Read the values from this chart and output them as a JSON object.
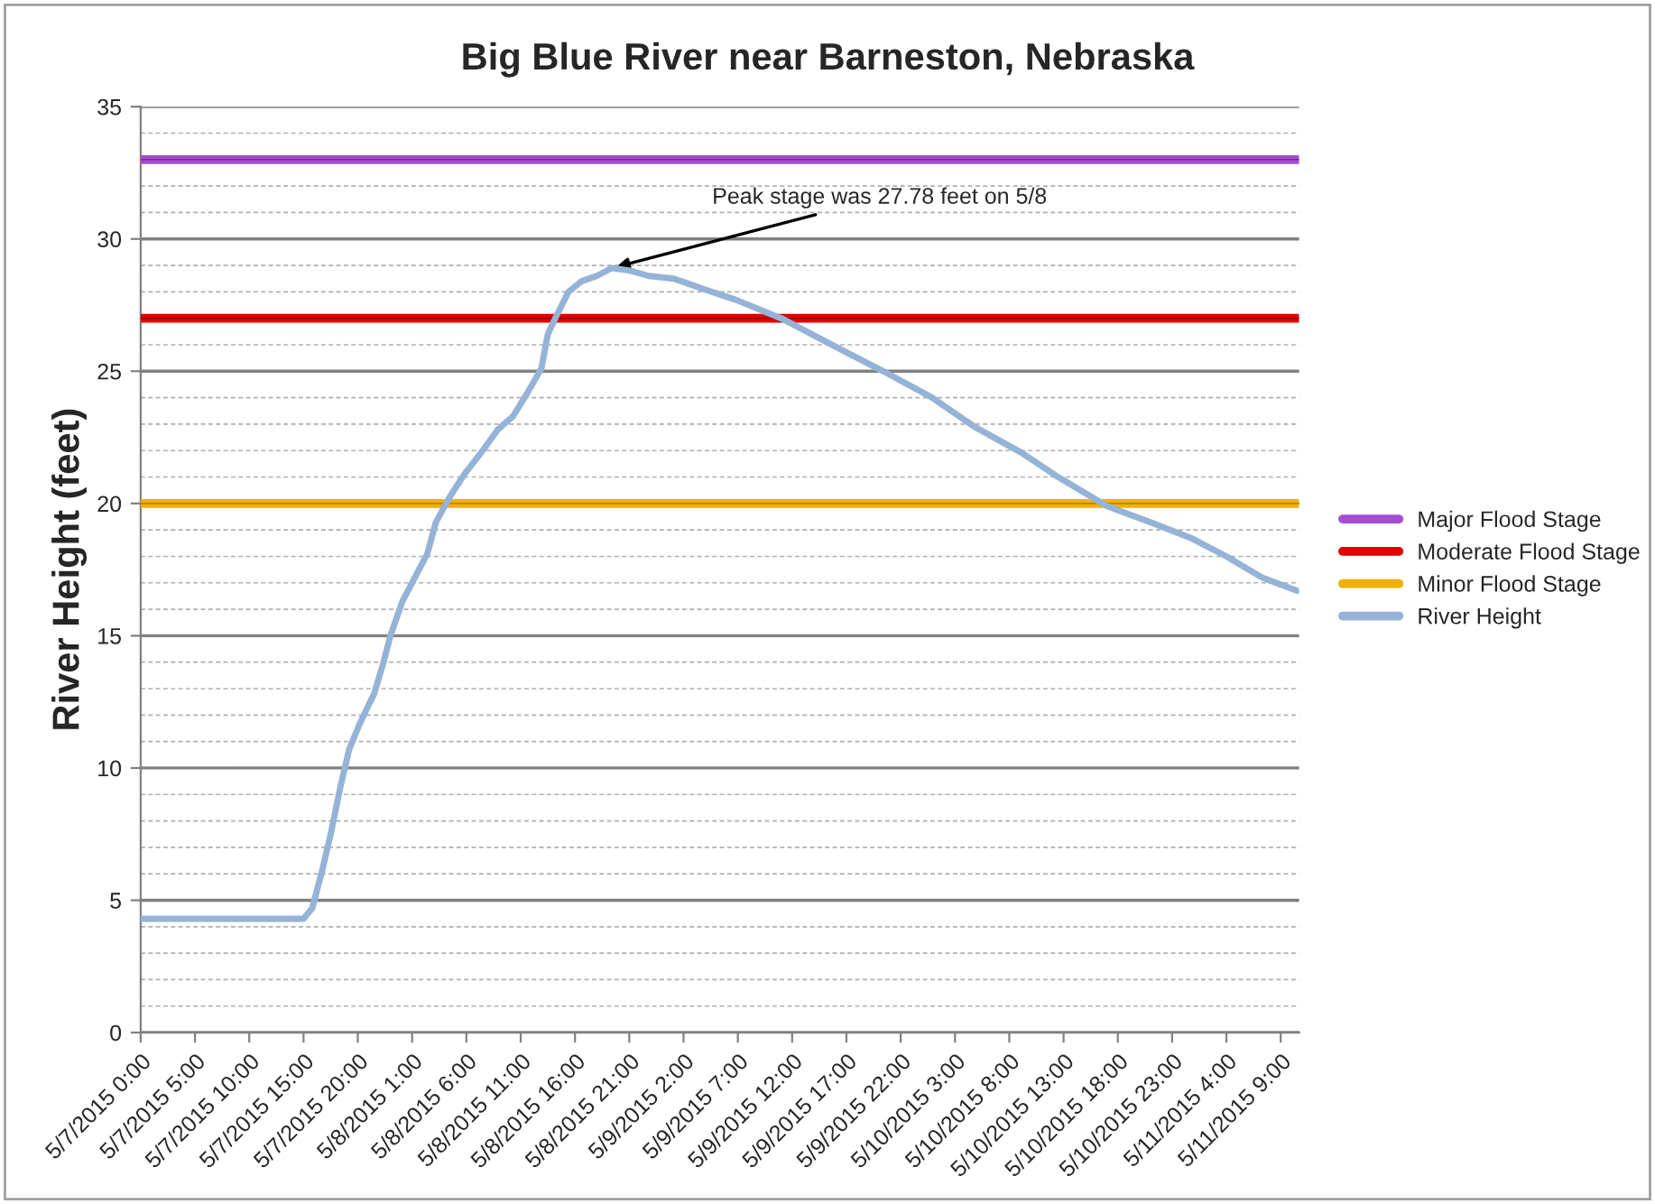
{
  "chart_data": {
    "type": "line",
    "title": "Big Blue River near Barneston, Nebraska",
    "ylabel": "River Height (feet)",
    "x": [
      "2015-05-07T00:00",
      "2015-05-07T12:12",
      "2015-05-07T15:00",
      "2015-05-07T15:48",
      "2015-05-07T16:42",
      "2015-05-07T17:30",
      "2015-05-07T18:24",
      "2015-05-07T19:12",
      "2015-05-07T20:06",
      "2015-05-07T20:54",
      "2015-05-07T21:30",
      "2015-05-07T22:18",
      "2015-05-07T23:00",
      "2015-05-08T00:06",
      "2015-05-08T01:30",
      "2015-05-08T02:24",
      "2015-05-08T03:12",
      "2015-05-08T04:24",
      "2015-05-08T05:48",
      "2015-05-08T07:30",
      "2015-05-08T08:54",
      "2015-05-08T10:18",
      "2015-05-08T11:30",
      "2015-05-08T12:54",
      "2015-05-08T13:30",
      "2015-05-08T14:18",
      "2015-05-08T15:24",
      "2015-05-08T16:36",
      "2015-05-08T18:00",
      "2015-05-08T19:24",
      "2015-05-08T21:06",
      "2015-05-08T22:48",
      "2015-05-09T01:06",
      "2015-05-09T03:54",
      "2015-05-09T06:48",
      "2015-05-09T11:00",
      "2015-05-09T16:36",
      "2015-05-09T20:24",
      "2015-05-10T00:54",
      "2015-05-10T04:48",
      "2015-05-10T09:12",
      "2015-05-10T12:30",
      "2015-05-10T17:00",
      "2015-05-10T20:18",
      "2015-05-11T00:42",
      "2015-05-11T04:00",
      "2015-05-11T07:18",
      "2015-05-11T10:30"
    ],
    "series": [
      {
        "name": "River Height",
        "color": "#95b3d7",
        "values": [
          4.3,
          4.3,
          4.3,
          4.7,
          6.1,
          7.5,
          9.3,
          10.7,
          11.6,
          12.3,
          12.8,
          13.9,
          15.0,
          16.3,
          17.4,
          18.1,
          19.3,
          20.2,
          21.1,
          22.0,
          22.8,
          23.3,
          24.1,
          25.1,
          26.4,
          27.1,
          28.0,
          28.4,
          28.6,
          28.9,
          28.8,
          28.6,
          28.5,
          28.1,
          27.7,
          27.0,
          25.8,
          25.0,
          24.0,
          22.9,
          21.9,
          21.0,
          19.9,
          19.4,
          18.7,
          18.0,
          17.2,
          16.7
        ]
      }
    ],
    "ref_lines": [
      {
        "axis": "y",
        "value": 33,
        "label": "Major Flood Stage",
        "color": "#a64dd2"
      },
      {
        "axis": "y",
        "value": 27,
        "label": "Moderate Flood Stage",
        "color": "#e00000"
      },
      {
        "axis": "y",
        "value": 20,
        "label": "Minor Flood Stage",
        "color": "#f0b000"
      }
    ],
    "annotations": [
      {
        "text": "Peak stage was 27.78 feet on 5/8",
        "x": "2015-05-08T19:24",
        "y": 28.9
      }
    ],
    "xlim": [
      "2015-05-07T00:00",
      "2015-05-11T10:42"
    ],
    "xticks": [
      {
        "value": "2015-05-07T00:00",
        "label": "5/7/2015 0:00"
      },
      {
        "value": "2015-05-07T05:00",
        "label": "5/7/2015 5:00"
      },
      {
        "value": "2015-05-07T10:00",
        "label": "5/7/2015 10:00"
      },
      {
        "value": "2015-05-07T15:00",
        "label": "5/7/2015 15:00"
      },
      {
        "value": "2015-05-07T20:00",
        "label": "5/7/2015 20:00"
      },
      {
        "value": "2015-05-08T01:00",
        "label": "5/8/2015 1:00"
      },
      {
        "value": "2015-05-08T06:00",
        "label": "5/8/2015 6:00"
      },
      {
        "value": "2015-05-08T11:00",
        "label": "5/8/2015 11:00"
      },
      {
        "value": "2015-05-08T16:00",
        "label": "5/8/2015 16:00"
      },
      {
        "value": "2015-05-08T21:00",
        "label": "5/8/2015 21:00"
      },
      {
        "value": "2015-05-09T02:00",
        "label": "5/9/2015 2:00"
      },
      {
        "value": "2015-05-09T07:00",
        "label": "5/9/2015 7:00"
      },
      {
        "value": "2015-05-09T12:00",
        "label": "5/9/2015 12:00"
      },
      {
        "value": "2015-05-09T17:00",
        "label": "5/9/2015 17:00"
      },
      {
        "value": "2015-05-09T22:00",
        "label": "5/9/2015 22:00"
      },
      {
        "value": "2015-05-10T03:00",
        "label": "5/10/2015 3:00"
      },
      {
        "value": "2015-05-10T08:00",
        "label": "5/10/2015 8:00"
      },
      {
        "value": "2015-05-10T13:00",
        "label": "5/10/2015 13:00"
      },
      {
        "value": "2015-05-10T18:00",
        "label": "5/10/2015 18:00"
      },
      {
        "value": "2015-05-10T23:00",
        "label": "5/10/2015 23:00"
      },
      {
        "value": "2015-05-11T04:00",
        "label": "5/11/2015 4:00"
      },
      {
        "value": "2015-05-11T09:00",
        "label": "5/11/2015 9:00"
      }
    ],
    "ylim": [
      0,
      35
    ],
    "yticks": [
      0,
      5,
      10,
      15,
      20,
      25,
      30,
      35
    ],
    "grid": "y",
    "legend": "right",
    "marker": "none",
    "line_style": "solid"
  }
}
